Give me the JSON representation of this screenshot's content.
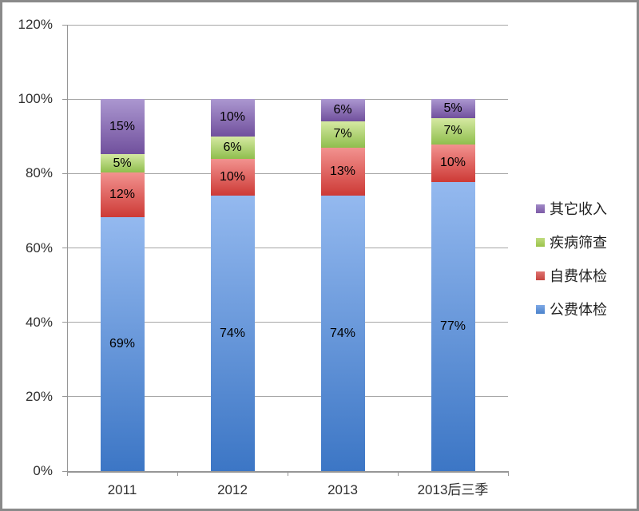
{
  "chart_data": {
    "type": "bar",
    "subtype": "stacked-100-percent-column",
    "title": "",
    "xlabel": "",
    "ylabel": "",
    "categories": [
      "2011",
      "2012",
      "2013",
      "2013后三季"
    ],
    "series_bottom_to_top": [
      {
        "name": "公费体检",
        "values": [
          69,
          74,
          74,
          77
        ],
        "label_suffix": "%",
        "fill_top": "#94b9ef",
        "fill_bottom": "#3c76c5",
        "legend_top": "#7fa9e6",
        "legend_bottom": "#4a82cb"
      },
      {
        "name": "自费体检",
        "values": [
          12,
          10,
          13,
          10
        ],
        "label_suffix": "%",
        "fill_top": "#f2928f",
        "fill_bottom": "#cd3a36",
        "legend_top": "#df7370",
        "legend_bottom": "#c64540"
      },
      {
        "name": "疾病筛查",
        "values": [
          5,
          6,
          7,
          7
        ],
        "label_suffix": "%",
        "fill_top": "#d5e9a2",
        "fill_bottom": "#8fbe4d",
        "legend_top": "#c0dc80",
        "legend_bottom": "#9ac24a"
      },
      {
        "name": "其它收入",
        "values": [
          15,
          10,
          6,
          5
        ],
        "label_suffix": "%",
        "fill_top": "#ab97d0",
        "fill_bottom": "#71509d",
        "legend_top": "#a089c6",
        "legend_bottom": "#7d5ca7"
      }
    ],
    "legend_order_top_to_bottom": [
      "其它收入",
      "疾病筛查",
      "自费体检",
      "公费体检"
    ],
    "legend_position": "right",
    "data_labels": "inside-center",
    "y_axis": {
      "tick_labels": [
        "0%",
        "20%",
        "40%",
        "60%",
        "80%",
        "100%",
        "120%"
      ],
      "min": 0,
      "max": 1.2,
      "grid": true
    },
    "colors": {
      "gridline": "#a6a6a6",
      "axis": "#969696",
      "tick_text": "#2f2f2f",
      "segment_label_text": "#000000",
      "outer_border": "#8a8a8a",
      "background": "#ffffff"
    }
  }
}
